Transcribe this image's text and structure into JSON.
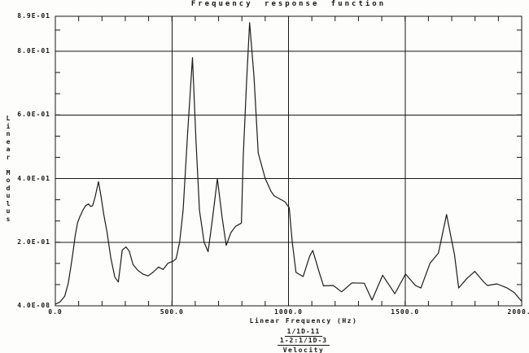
{
  "chart_data": {
    "type": "line",
    "title": "Frequency response function",
    "xlabel": "Linear Frequency (Hz)",
    "ylabel": "Linear Modulus",
    "xlim": [
      0,
      2000
    ],
    "ylim": [
      0,
      0.91
    ],
    "grid": true,
    "legend": "none",
    "line_color": "#1c1c1c",
    "x_tick_values": [
      0,
      500,
      1000,
      1500,
      2000
    ],
    "x_tick_labels": [
      "0.0",
      "500.0",
      "1000.0",
      "1500.0",
      "2000.0"
    ],
    "x_minor_step": 100,
    "y_gridline_values": [
      0.2,
      0.4,
      0.6,
      0.8
    ],
    "y_tick_labels": [
      "2.0E-01",
      "4.0E-01",
      "6.0E-01",
      "8.0E-01"
    ],
    "y_max_label": "8.9E-01",
    "y_min_label": "4.0E-08",
    "y_minor_divisions": 3,
    "series": [
      {
        "points": [
          [
            0,
            0.005
          ],
          [
            20,
            0.012
          ],
          [
            40,
            0.03
          ],
          [
            55,
            0.07
          ],
          [
            65,
            0.115
          ],
          [
            75,
            0.165
          ],
          [
            85,
            0.22
          ],
          [
            95,
            0.26
          ],
          [
            105,
            0.28
          ],
          [
            118,
            0.3
          ],
          [
            130,
            0.315
          ],
          [
            142,
            0.32
          ],
          [
            152,
            0.312
          ],
          [
            160,
            0.315
          ],
          [
            170,
            0.34
          ],
          [
            185,
            0.39
          ],
          [
            197,
            0.34
          ],
          [
            207,
            0.29
          ],
          [
            222,
            0.23
          ],
          [
            238,
            0.15
          ],
          [
            255,
            0.09
          ],
          [
            270,
            0.075
          ],
          [
            287,
            0.175
          ],
          [
            303,
            0.185
          ],
          [
            317,
            0.172
          ],
          [
            333,
            0.13
          ],
          [
            352,
            0.113
          ],
          [
            375,
            0.1
          ],
          [
            398,
            0.094
          ],
          [
            420,
            0.106
          ],
          [
            443,
            0.122
          ],
          [
            462,
            0.114
          ],
          [
            483,
            0.134
          ],
          [
            505,
            0.14
          ],
          [
            518,
            0.148
          ],
          [
            533,
            0.2
          ],
          [
            548,
            0.3
          ],
          [
            568,
            0.55
          ],
          [
            588,
            0.78
          ],
          [
            603,
            0.52
          ],
          [
            618,
            0.3
          ],
          [
            638,
            0.2
          ],
          [
            655,
            0.17
          ],
          [
            675,
            0.28
          ],
          [
            695,
            0.4
          ],
          [
            715,
            0.28
          ],
          [
            733,
            0.19
          ],
          [
            753,
            0.23
          ],
          [
            773,
            0.25
          ],
          [
            798,
            0.26
          ],
          [
            806,
            0.47
          ],
          [
            820,
            0.7
          ],
          [
            833,
            0.89
          ],
          [
            852,
            0.72
          ],
          [
            870,
            0.48
          ],
          [
            900,
            0.4
          ],
          [
            925,
            0.36
          ],
          [
            938,
            0.346
          ],
          [
            985,
            0.327
          ],
          [
            1003,
            0.308
          ],
          [
            1016,
            0.2
          ],
          [
            1032,
            0.105
          ],
          [
            1063,
            0.092
          ],
          [
            1090,
            0.155
          ],
          [
            1104,
            0.174
          ],
          [
            1132,
            0.105
          ],
          [
            1150,
            0.063
          ],
          [
            1192,
            0.064
          ],
          [
            1228,
            0.044
          ],
          [
            1272,
            0.072
          ],
          [
            1325,
            0.071
          ],
          [
            1358,
            0.018
          ],
          [
            1404,
            0.096
          ],
          [
            1456,
            0.038
          ],
          [
            1502,
            0.1
          ],
          [
            1544,
            0.064
          ],
          [
            1568,
            0.056
          ],
          [
            1607,
            0.134
          ],
          [
            1643,
            0.166
          ],
          [
            1678,
            0.287
          ],
          [
            1712,
            0.16
          ],
          [
            1730,
            0.056
          ],
          [
            1764,
            0.085
          ],
          [
            1799,
            0.108
          ],
          [
            1835,
            0.077
          ],
          [
            1853,
            0.064
          ],
          [
            1894,
            0.069
          ],
          [
            1938,
            0.056
          ],
          [
            1968,
            0.042
          ],
          [
            2000,
            0.014
          ]
        ]
      }
    ]
  },
  "annotation": {
    "numerator": "1/1D-11",
    "denominator": "1-2:1/1D-3",
    "label": "Velocity"
  }
}
